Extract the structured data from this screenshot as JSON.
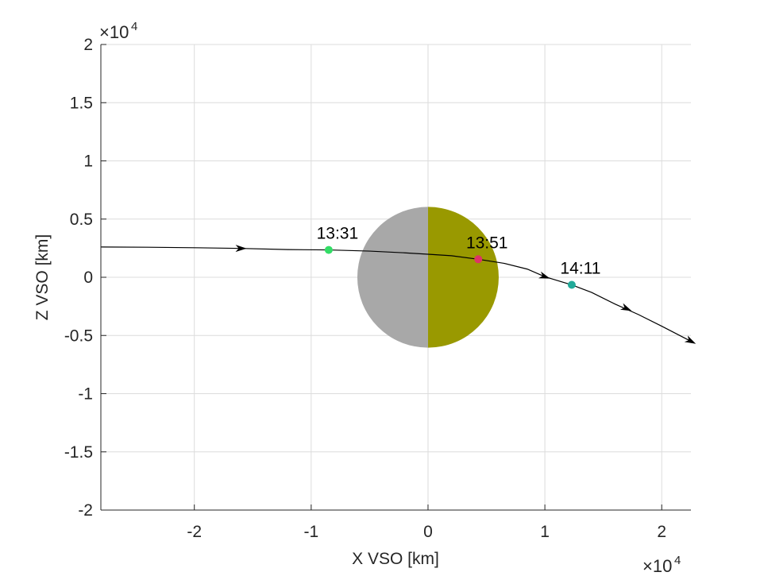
{
  "chart_data": {
    "type": "line",
    "xlabel": "X VSO [km]",
    "ylabel": "Z VSO [km]",
    "xlim": [
      -28000,
      22500
    ],
    "ylim": [
      -20000,
      20000
    ],
    "grid": true,
    "x_multiplier": {
      "base": "×10",
      "exponent": "4"
    },
    "y_multiplier": {
      "base": "×10",
      "exponent": "4"
    },
    "x_ticks": [
      {
        "value": -20000,
        "label": "-2"
      },
      {
        "value": -10000,
        "label": "-1"
      },
      {
        "value": 0,
        "label": "0"
      },
      {
        "value": 10000,
        "label": "1"
      },
      {
        "value": 20000,
        "label": "2"
      }
    ],
    "y_ticks": [
      {
        "value": -20000,
        "label": "-2"
      },
      {
        "value": -15000,
        "label": "-1.5"
      },
      {
        "value": -10000,
        "label": "-1"
      },
      {
        "value": -5000,
        "label": "-0.5"
      },
      {
        "value": 0,
        "label": "0"
      },
      {
        "value": 5000,
        "label": "0.5"
      },
      {
        "value": 10000,
        "label": "1"
      },
      {
        "value": 15000,
        "label": "1.5"
      },
      {
        "value": 20000,
        "label": "2"
      }
    ],
    "planet": {
      "center": [
        0,
        0
      ],
      "radius": 6050,
      "night_color": "#a8a8a8",
      "day_color": "#999900"
    },
    "trajectory": {
      "color": "#000000",
      "points": [
        [
          -28000,
          2600
        ],
        [
          -24000,
          2580
        ],
        [
          -20000,
          2540
        ],
        [
          -16000,
          2480
        ],
        [
          -12000,
          2380
        ],
        [
          -8500,
          2350
        ],
        [
          -5000,
          2250
        ],
        [
          -2000,
          2100
        ],
        [
          0,
          1980
        ],
        [
          2000,
          1850
        ],
        [
          4300,
          1550
        ],
        [
          6500,
          1200
        ],
        [
          8500,
          700
        ],
        [
          10000,
          50
        ],
        [
          12300,
          -650
        ],
        [
          14000,
          -1300
        ],
        [
          16000,
          -2300
        ],
        [
          18000,
          -3200
        ],
        [
          20000,
          -4200
        ],
        [
          22500,
          -5500
        ]
      ],
      "arrows": [
        {
          "x": -16000,
          "y": 2480,
          "dx": 1,
          "dy": -0.01
        },
        {
          "x": 10000,
          "y": 50,
          "dx": 1,
          "dy": -0.35
        },
        {
          "x": 17000,
          "y": -2700,
          "dx": 1,
          "dy": -0.45
        },
        {
          "x": 22500,
          "y": -5500,
          "dx": 1,
          "dy": -0.52
        }
      ]
    },
    "markers": [
      {
        "time": "13:31",
        "x": -8500,
        "y": 2350,
        "color": "#33dd66"
      },
      {
        "time": "13:51",
        "x": 4300,
        "y": 1550,
        "color": "#dd3366"
      },
      {
        "time": "14:11",
        "x": 12300,
        "y": -650,
        "color": "#22aa99"
      }
    ]
  }
}
